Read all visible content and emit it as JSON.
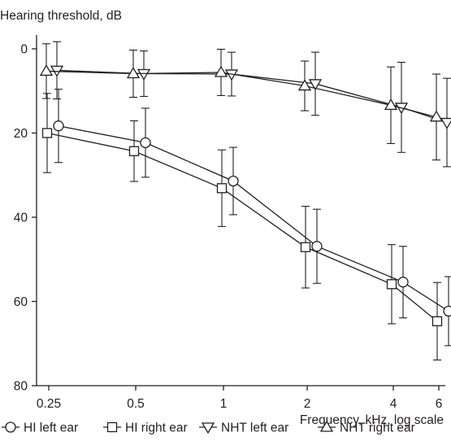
{
  "chart_data": {
    "type": "line",
    "ylabel": "Hearing threshold, dB",
    "xlabel": "Frequency, kHz, log scale",
    "x_scale": "log",
    "y_inverted": true,
    "x_ticks": [
      0.25,
      0.5,
      1,
      2,
      4,
      6
    ],
    "x_tick_labels": [
      "0.25",
      "0.5",
      "1",
      "2",
      "4",
      "6"
    ],
    "y_ticks": [
      0,
      20,
      40,
      60,
      80
    ],
    "y_tick_labels": [
      "0",
      "20",
      "40",
      "60",
      "80"
    ],
    "ylim": [
      0,
      80
    ],
    "xlim": [
      0.22,
      6.5
    ],
    "grid": false,
    "legend_position": "bottom",
    "colors": {
      "line": "#231f20",
      "background": "#ffffff"
    },
    "series": [
      {
        "name": "HI left ear",
        "marker": "circle",
        "x": [
          0.25,
          0.5,
          1,
          2,
          4,
          6
        ],
        "values": [
          18.3,
          22.3,
          31.4,
          46.9,
          55.4,
          62.3
        ],
        "error": [
          8.7,
          8.2,
          8.0,
          8.8,
          8.5,
          8.2
        ]
      },
      {
        "name": "HI right ear",
        "marker": "square",
        "x": [
          0.25,
          0.5,
          1,
          2,
          4,
          6
        ],
        "values": [
          20.0,
          24.3,
          33.1,
          47.1,
          55.9,
          64.7
        ],
        "error": [
          9.4,
          7.2,
          9.1,
          9.7,
          9.4,
          9.2
        ]
      },
      {
        "name": "NHT left ear",
        "marker": "triangle-down",
        "x": [
          0.25,
          0.5,
          1,
          2,
          4,
          6
        ],
        "values": [
          5.1,
          5.9,
          6.0,
          8.3,
          13.9,
          17.5
        ],
        "error": [
          6.8,
          5.4,
          5.2,
          7.5,
          10.7,
          10.5
        ]
      },
      {
        "name": "NHT right ear",
        "marker": "triangle-up",
        "x": [
          0.25,
          0.5,
          1,
          2,
          4,
          6
        ],
        "values": [
          5.3,
          5.9,
          5.6,
          8.8,
          13.4,
          16.2
        ],
        "error": [
          6.5,
          5.6,
          5.5,
          5.9,
          9.1,
          10.2
        ]
      }
    ]
  }
}
